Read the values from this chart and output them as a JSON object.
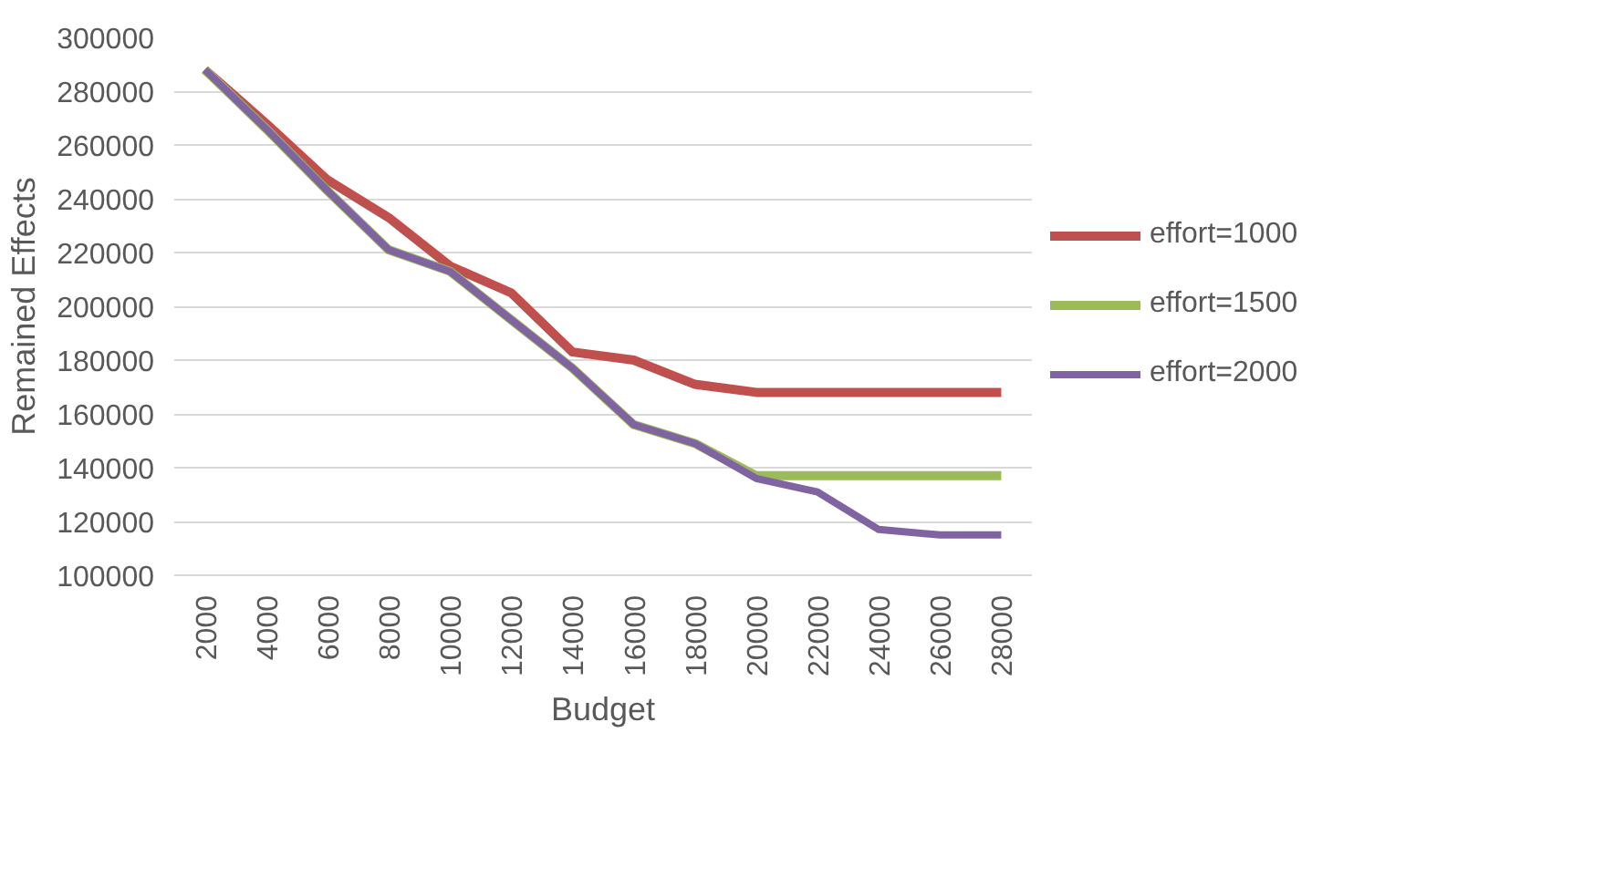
{
  "chart_data": {
    "type": "line",
    "xlabel": "Budget",
    "ylabel": "Remained Effects",
    "categories": [
      "2000",
      "4000",
      "6000",
      "8000",
      "10000",
      "12000",
      "14000",
      "16000",
      "18000",
      "20000",
      "22000",
      "24000",
      "26000",
      "28000"
    ],
    "series": [
      {
        "name": "effort=1000",
        "color": "#c0504d",
        "values": [
          288000,
          268000,
          247000,
          233000,
          215000,
          205000,
          183000,
          180000,
          171000,
          168000,
          168000,
          168000,
          168000,
          168000
        ]
      },
      {
        "name": "effort=1500",
        "color": "#9bbb59",
        "values": [
          288000,
          266000,
          243000,
          221000,
          213000,
          195000,
          177000,
          156000,
          149000,
          137000,
          137000,
          137000,
          137000,
          137000
        ]
      },
      {
        "name": "effort=2000",
        "color": "#8064a2",
        "values": [
          288000,
          266000,
          243000,
          221000,
          213000,
          195000,
          177000,
          156000,
          149000,
          136000,
          131000,
          117000,
          115000,
          115000
        ]
      }
    ],
    "ylim": [
      100000,
      300000
    ],
    "yticks": [
      100000,
      120000,
      140000,
      160000,
      180000,
      200000,
      220000,
      240000,
      260000,
      280000,
      300000
    ],
    "grid": "y",
    "legend": "right",
    "marker": "none",
    "line_style": "solid"
  }
}
